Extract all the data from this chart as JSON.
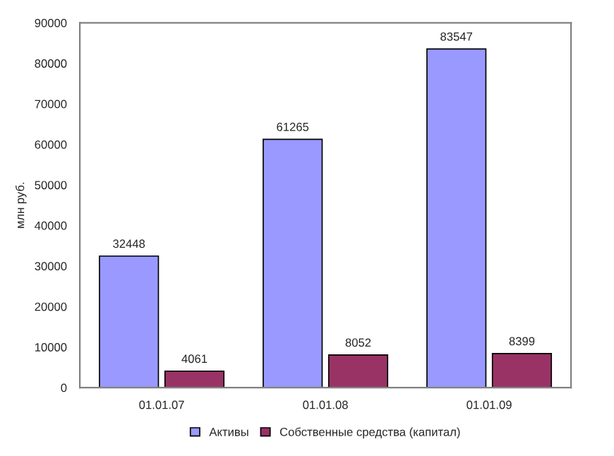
{
  "chart_data": {
    "type": "bar",
    "ylabel": "млн руб.",
    "categories": [
      "01.01.07",
      "01.01.08",
      "01.01.09"
    ],
    "series": [
      {
        "name": "Активы",
        "color": "#9999ff",
        "values": [
          32448,
          61265,
          83547
        ]
      },
      {
        "name": "Собственные средства (капитал)",
        "color": "#993366",
        "values": [
          4061,
          8052,
          8399
        ]
      }
    ],
    "ylim": [
      0,
      90000
    ],
    "yticks": [
      0,
      10000,
      20000,
      30000,
      40000,
      50000,
      60000,
      70000,
      80000,
      90000
    ],
    "data_labels": true,
    "legend": "bottom",
    "grid": false
  }
}
